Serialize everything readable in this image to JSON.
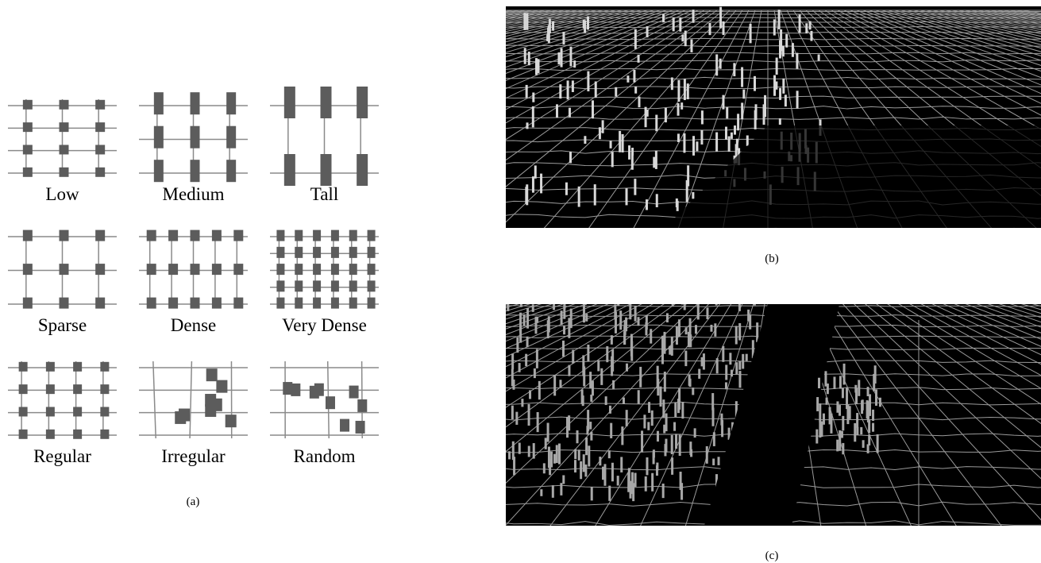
{
  "panel_a": {
    "labels": [
      "Low",
      "Medium",
      "Tall",
      "Sparse",
      "Dense",
      "Very Dense",
      "Regular",
      "Irregular",
      "Random"
    ],
    "caption": "(a)"
  },
  "panel_b": {
    "caption": "(b)"
  },
  "panel_c": {
    "caption": "(c)"
  }
}
